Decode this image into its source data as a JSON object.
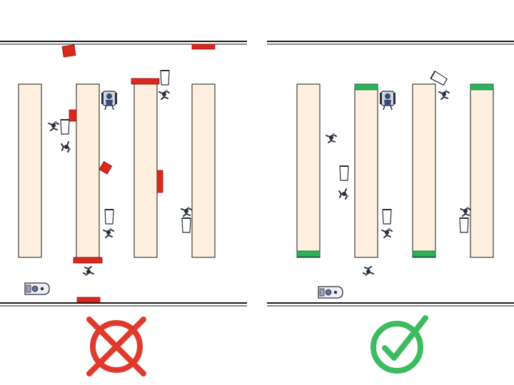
{
  "figure": {
    "panels": [
      {
        "id": "incorrect",
        "verdict": "incorrect",
        "verdict_icon": "cross-in-circle-icon",
        "verdict_color": "#e03a2f",
        "marker_color": "#d9281e",
        "shelf_color": "#fdf0de"
      },
      {
        "id": "correct",
        "verdict": "correct",
        "verdict_icon": "checkmark-in-circle-icon",
        "verdict_color": "#3dbb5f",
        "marker_color": "#2bb35a",
        "shelf_color": "#fdf0de"
      }
    ],
    "object_icons": [
      "person-walking-icon",
      "person-in-wheelchair-icon",
      "floor-robot-icon",
      "cup-icon"
    ]
  }
}
